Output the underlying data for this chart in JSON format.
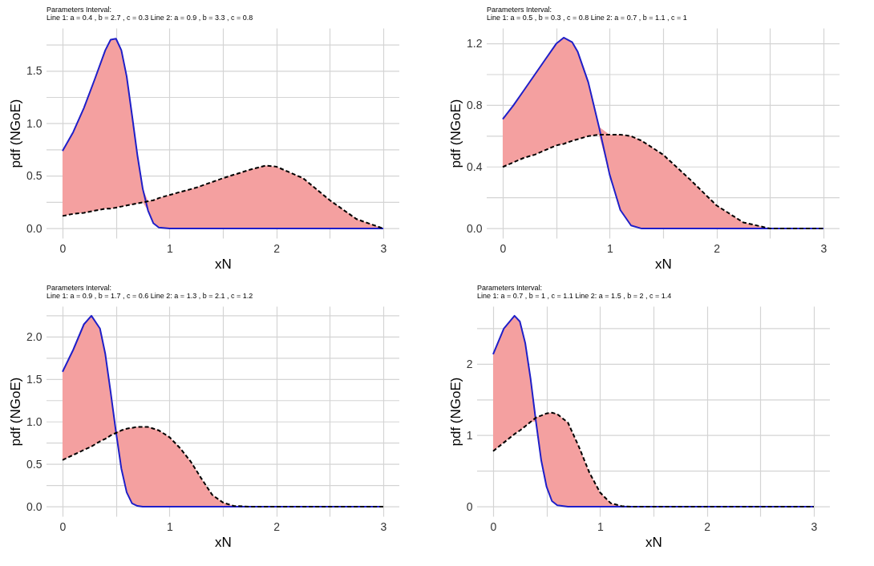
{
  "chart_data": [
    {
      "type": "line",
      "title": "Parameters Interval:",
      "subtitle": " Line 1:  a = 0.4 ,  b = 2.7 , c = 0.3 Line 2:  a = 0.9 ,  b = 3.3 , c = 0.8",
      "xlabel": "xN",
      "ylabel": "pdf (NGoE)",
      "grid": true,
      "x": [
        0,
        0.1,
        0.2,
        0.3,
        0.4,
        0.45,
        0.5,
        0.55,
        0.6,
        0.65,
        0.7,
        0.75,
        0.8,
        0.85,
        0.9,
        1,
        1.25,
        1.5,
        1.75,
        1.9,
        2,
        2.25,
        2.5,
        2.75,
        3
      ],
      "xlim": [
        -0.15,
        3.15
      ],
      "xticks": [
        0,
        {
          "value": 0.5,
          "label": null
        },
        1,
        {
          "value": 1.5,
          "label": null
        },
        2,
        {
          "value": 2.5,
          "label": null
        },
        3
      ],
      "ylim": [
        -0.091,
        1.911
      ],
      "yticks": [
        {
          "value": 0,
          "label": "0.0"
        },
        {
          "value": 0.25,
          "label": null
        },
        {
          "value": 0.5,
          "label": "0.5"
        },
        {
          "value": 0.75,
          "label": null
        },
        {
          "value": 1,
          "label": "1.0"
        },
        {
          "value": 1.25,
          "label": null
        },
        {
          "value": 1.5,
          "label": "1.5"
        },
        {
          "value": 1.75,
          "label": null
        }
      ],
      "series": [
        {
          "color": "#1f1fc8",
          "line_style": "solid",
          "values": [
            0.74,
            0.92,
            1.15,
            1.42,
            1.7,
            1.8,
            1.81,
            1.7,
            1.45,
            1.08,
            0.7,
            0.38,
            0.17,
            0.05,
            0.01,
            0,
            0,
            0,
            0,
            0,
            0,
            0,
            0,
            0,
            0
          ],
          "lower": [
            0.12,
            0.14,
            0.15,
            0.17,
            0.19,
            0.19,
            0.2,
            0.21,
            0.22,
            0.23,
            0.24,
            0.25,
            0.17,
            0.05,
            0.01,
            0,
            0,
            0,
            0,
            0,
            0,
            0,
            0,
            0,
            0
          ],
          "upper": [
            0.74,
            0.92,
            1.15,
            1.42,
            1.7,
            1.8,
            1.81,
            1.7,
            1.45,
            1.08,
            0.7,
            0.38,
            0.26,
            0.27,
            0.29,
            0.32,
            0.39,
            0.48,
            0.56,
            0.6,
            0.59,
            0.48,
            0.27,
            0.09,
            0
          ]
        },
        {
          "color": "#000000",
          "line_style": "dashed",
          "values": [
            0.12,
            0.14,
            0.15,
            0.17,
            0.19,
            0.19,
            0.2,
            0.21,
            0.22,
            0.23,
            0.24,
            0.25,
            0.26,
            0.27,
            0.29,
            0.32,
            0.39,
            0.48,
            0.56,
            0.6,
            0.59,
            0.48,
            0.27,
            0.09,
            0
          ]
        }
      ]
    },
    {
      "type": "line",
      "title": "Parameters Interval:",
      "subtitle": " Line 1:  a = 0.5 ,  b = 0.3 , c = 0.8 Line 2:  a = 0.7 ,  b = 1.1 , c = 1",
      "xlabel": "xN",
      "ylabel": "pdf (NGoE)",
      "grid": true,
      "x": [
        0,
        0.1,
        0.2,
        0.3,
        0.4,
        0.5,
        0.57,
        0.65,
        0.7,
        0.8,
        0.9,
        1,
        1.1,
        1.2,
        1.3,
        1.5,
        1.75,
        2,
        2.25,
        2.5,
        2.75,
        3
      ],
      "xlim": [
        -0.15,
        3.15
      ],
      "xticks": [
        0,
        {
          "value": 0.5,
          "label": null
        },
        1,
        {
          "value": 1.5,
          "label": null
        },
        2,
        {
          "value": 2.5,
          "label": null
        },
        3
      ],
      "ylim": [
        -0.062,
        1.302
      ],
      "yticks": [
        {
          "value": 0,
          "label": "0.0"
        },
        {
          "value": 0.2,
          "label": null
        },
        {
          "value": 0.4,
          "label": "0.4"
        },
        {
          "value": 0.6,
          "label": null
        },
        {
          "value": 0.8,
          "label": "0.8"
        },
        {
          "value": 1,
          "label": null
        },
        {
          "value": 1.2,
          "label": "1.2"
        }
      ],
      "series": [
        {
          "color": "#1f1fc8",
          "line_style": "solid",
          "values": [
            0.71,
            0.8,
            0.9,
            1.0,
            1.1,
            1.2,
            1.24,
            1.21,
            1.15,
            0.95,
            0.66,
            0.35,
            0.12,
            0.02,
            0,
            0,
            0,
            0,
            0,
            0,
            0,
            0
          ],
          "lower": [
            0.4,
            0.43,
            0.46,
            0.48,
            0.51,
            0.54,
            0.55,
            0.57,
            0.58,
            0.6,
            0.61,
            0.35,
            0.12,
            0.02,
            0,
            0,
            0,
            0,
            0,
            0,
            0,
            0
          ],
          "upper": [
            0.71,
            0.8,
            0.9,
            1.0,
            1.1,
            1.2,
            1.24,
            1.21,
            1.15,
            0.95,
            0.66,
            0.61,
            0.61,
            0.6,
            0.57,
            0.48,
            0.32,
            0.15,
            0.04,
            0,
            0,
            0
          ]
        },
        {
          "color": "#000000",
          "line_style": "dashed",
          "values": [
            0.4,
            0.43,
            0.46,
            0.48,
            0.51,
            0.54,
            0.55,
            0.57,
            0.58,
            0.6,
            0.61,
            0.61,
            0.61,
            0.6,
            0.57,
            0.48,
            0.32,
            0.15,
            0.04,
            0,
            0,
            0
          ]
        }
      ]
    },
    {
      "type": "line",
      "title": "Parameters Interval:",
      "subtitle": " Line 1:  a = 0.9 ,  b = 1.7 , c = 0.6 Line 2:  a = 1.3 ,  b = 2.1 , c = 1.2",
      "xlabel": "xN",
      "ylabel": "pdf (NGoE)",
      "grid": true,
      "x": [
        0,
        0.1,
        0.2,
        0.27,
        0.35,
        0.4,
        0.45,
        0.5,
        0.55,
        0.6,
        0.65,
        0.7,
        0.75,
        0.8,
        0.9,
        1,
        1.1,
        1.2,
        1.3,
        1.4,
        1.5,
        1.6,
        1.75,
        2,
        2.5,
        3
      ],
      "xlim": [
        -0.15,
        3.15
      ],
      "xticks": [
        0,
        {
          "value": 0.5,
          "label": null
        },
        1,
        {
          "value": 1.5,
          "label": null
        },
        2,
        {
          "value": 2.5,
          "label": null
        },
        3
      ],
      "ylim": [
        -0.1125,
        2.3625
      ],
      "yticks": [
        {
          "value": 0,
          "label": "0.0"
        },
        {
          "value": 0.25,
          "label": null
        },
        {
          "value": 0.5,
          "label": "0.5"
        },
        {
          "value": 0.75,
          "label": null
        },
        {
          "value": 1,
          "label": "1.0"
        },
        {
          "value": 1.25,
          "label": null
        },
        {
          "value": 1.5,
          "label": "1.5"
        },
        {
          "value": 1.75,
          "label": null
        },
        {
          "value": 2,
          "label": "2.0"
        },
        {
          "value": 2.25,
          "label": null
        }
      ],
      "series": [
        {
          "color": "#1f1fc8",
          "line_style": "solid",
          "values": [
            1.59,
            1.85,
            2.15,
            2.25,
            2.1,
            1.8,
            1.35,
            0.88,
            0.45,
            0.17,
            0.04,
            0.01,
            0,
            0,
            0,
            0,
            0,
            0,
            0,
            0,
            0,
            0,
            0,
            0,
            0,
            0
          ],
          "lower": [
            0.55,
            0.61,
            0.67,
            0.71,
            0.77,
            0.8,
            0.84,
            0.87,
            0.45,
            0.17,
            0.04,
            0.01,
            0,
            0,
            0,
            0,
            0,
            0,
            0,
            0,
            0,
            0,
            0,
            0,
            0,
            0
          ],
          "upper": [
            1.59,
            1.85,
            2.15,
            2.25,
            2.1,
            1.8,
            1.35,
            0.88,
            0.9,
            0.92,
            0.93,
            0.94,
            0.94,
            0.94,
            0.9,
            0.82,
            0.69,
            0.53,
            0.33,
            0.14,
            0.05,
            0.01,
            0,
            0,
            0,
            0
          ]
        },
        {
          "color": "#000000",
          "line_style": "dashed",
          "values": [
            0.55,
            0.61,
            0.67,
            0.71,
            0.77,
            0.8,
            0.84,
            0.87,
            0.9,
            0.92,
            0.93,
            0.94,
            0.94,
            0.94,
            0.9,
            0.82,
            0.69,
            0.53,
            0.33,
            0.14,
            0.05,
            0.01,
            0,
            0,
            0,
            0
          ]
        }
      ]
    },
    {
      "type": "line",
      "title": "Parameters Interval:",
      "subtitle": " Line 1:  a = 0.7 ,  b = 1 , c = 1.1 Line 2:  a = 1.5 ,  b = 2 , c = 1.4",
      "xlabel": "xN",
      "ylabel": "pdf (NGoE)",
      "grid": true,
      "x": [
        0,
        0.1,
        0.2,
        0.25,
        0.3,
        0.35,
        0.4,
        0.45,
        0.5,
        0.55,
        0.6,
        0.7,
        0.8,
        0.9,
        1,
        1.1,
        1.2,
        1.3,
        1.5,
        2,
        2.5,
        3
      ],
      "xlim": [
        -0.15,
        3.15
      ],
      "xticks": [
        0,
        {
          "value": 0.5,
          "label": null
        },
        1,
        {
          "value": 1.5,
          "label": null
        },
        2,
        {
          "value": 2.5,
          "label": null
        },
        3
      ],
      "ylim": [
        -0.134,
        2.814
      ],
      "yticks": [
        0,
        {
          "value": 0.5,
          "label": null
        },
        1,
        {
          "value": 1.5,
          "label": null
        },
        2,
        {
          "value": 2.5,
          "label": null
        }
      ],
      "series": [
        {
          "color": "#1f1fc8",
          "line_style": "solid",
          "values": [
            2.14,
            2.5,
            2.68,
            2.6,
            2.3,
            1.8,
            1.2,
            0.65,
            0.28,
            0.08,
            0.02,
            0,
            0,
            0,
            0,
            0,
            0,
            0,
            0,
            0,
            0,
            0
          ],
          "lower": [
            0.78,
            0.9,
            1.02,
            1.07,
            1.13,
            1.19,
            1.2,
            0.65,
            0.28,
            0.08,
            0.02,
            0,
            0,
            0,
            0,
            0,
            0,
            0,
            0,
            0,
            0,
            0
          ],
          "upper": [
            2.14,
            2.5,
            2.68,
            2.6,
            2.3,
            1.8,
            1.25,
            1.28,
            1.31,
            1.32,
            1.3,
            1.18,
            0.85,
            0.48,
            0.2,
            0.05,
            0.01,
            0,
            0,
            0,
            0,
            0
          ]
        },
        {
          "color": "#000000",
          "line_style": "dashed",
          "values": [
            0.78,
            0.9,
            1.02,
            1.07,
            1.13,
            1.19,
            1.25,
            1.28,
            1.31,
            1.32,
            1.3,
            1.18,
            0.85,
            0.48,
            0.2,
            0.05,
            0.01,
            0,
            0,
            0,
            0,
            0
          ]
        }
      ]
    }
  ]
}
